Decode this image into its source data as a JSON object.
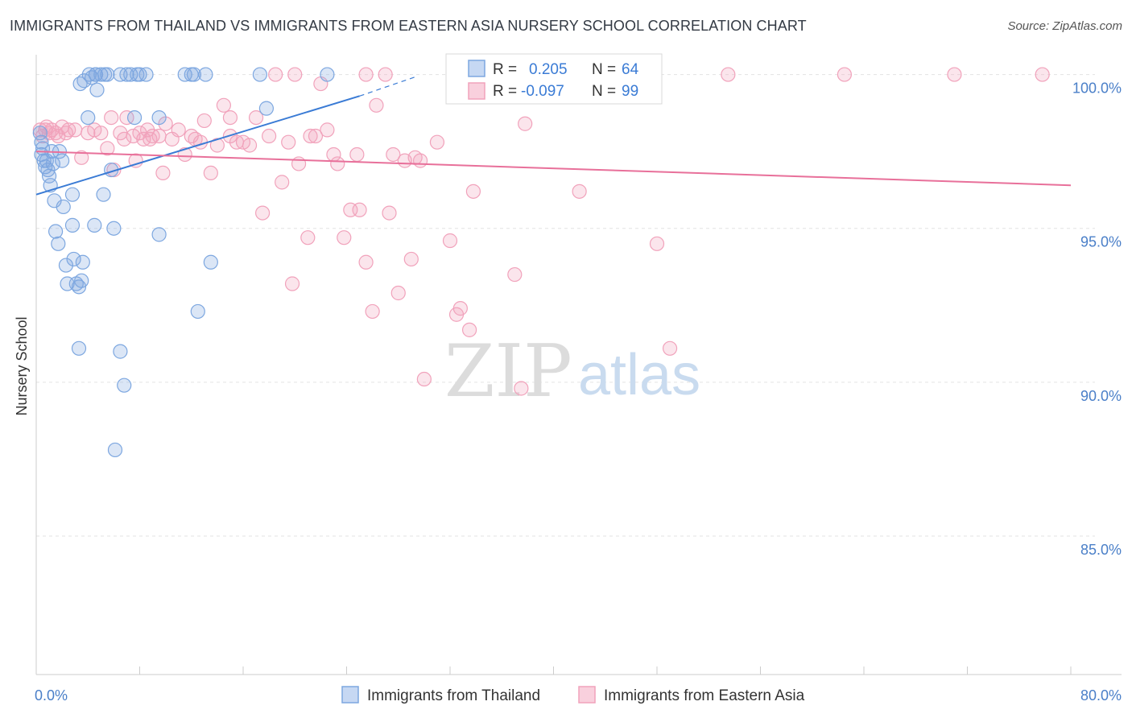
{
  "header": {
    "title": "IMMIGRANTS FROM THAILAND VS IMMIGRANTS FROM EASTERN ASIA NURSERY SCHOOL CORRELATION CHART",
    "source": "Source: ZipAtlas.com"
  },
  "watermark": {
    "zip": "ZIP",
    "atlas": "atlas"
  },
  "chart_data": {
    "type": "scatter",
    "ylabel": "Nursery School",
    "xlim": [
      0,
      80
    ],
    "ylim": [
      80.5,
      100.8
    ],
    "x_tick_labels": [
      {
        "value": 0,
        "label": "0.0%"
      },
      {
        "value": 80,
        "label": "80.0%"
      }
    ],
    "y_tick_labels": [
      {
        "value": 100,
        "label": "100.0%"
      },
      {
        "value": 95,
        "label": "95.0%"
      },
      {
        "value": 90,
        "label": "90.0%"
      },
      {
        "value": 85,
        "label": "85.0%"
      }
    ],
    "grid": true,
    "legend_position": "top-center",
    "legend": [
      {
        "r_label": "R =",
        "r_value": "0.205",
        "n_label": "N =",
        "n_value": "64"
      },
      {
        "r_label": "R =",
        "r_value": "-0.097",
        "n_label": "N =",
        "n_value": "99"
      }
    ],
    "series": [
      {
        "name": "Immigrants from Thailand",
        "color": "#7da7e0",
        "line_color": "#3a7bd5",
        "trend": {
          "x0": 0,
          "y0": 96.1,
          "x1": 25,
          "y1": 99.3,
          "dash_to_x": 29.5,
          "dash_to_y": 99.95
        },
        "points": [
          [
            0.3,
            98.1
          ],
          [
            0.4,
            97.8
          ],
          [
            0.4,
            97.4
          ],
          [
            0.5,
            97.6
          ],
          [
            0.6,
            97.2
          ],
          [
            0.7,
            97.0
          ],
          [
            0.9,
            96.9
          ],
          [
            1.0,
            96.7
          ],
          [
            1.1,
            96.4
          ],
          [
            1.2,
            97.5
          ],
          [
            1.3,
            97.1
          ],
          [
            2.0,
            97.2
          ],
          [
            1.4,
            95.9
          ],
          [
            1.5,
            94.9
          ],
          [
            1.7,
            94.5
          ],
          [
            2.1,
            95.7
          ],
          [
            2.3,
            93.8
          ],
          [
            2.4,
            93.2
          ],
          [
            2.8,
            96.1
          ],
          [
            2.8,
            95.1
          ],
          [
            2.9,
            94.0
          ],
          [
            3.1,
            93.2
          ],
          [
            3.3,
            93.1
          ],
          [
            3.5,
            93.3
          ],
          [
            3.6,
            93.9
          ],
          [
            3.3,
            91.1
          ],
          [
            4.0,
            98.6
          ],
          [
            4.1,
            100.0
          ],
          [
            4.3,
            99.9
          ],
          [
            4.6,
            100.0
          ],
          [
            3.4,
            99.7
          ],
          [
            3.7,
            99.8
          ],
          [
            4.5,
            95.1
          ],
          [
            4.7,
            99.5
          ],
          [
            4.6,
            100.0
          ],
          [
            5.0,
            100.0
          ],
          [
            5.2,
            96.1
          ],
          [
            5.3,
            100.0
          ],
          [
            5.8,
            96.9
          ],
          [
            6.0,
            95.0
          ],
          [
            6.5,
            100.0
          ],
          [
            7.0,
            100.0
          ],
          [
            7.3,
            100.0
          ],
          [
            7.6,
            98.6
          ],
          [
            7.8,
            100.0
          ],
          [
            6.5,
            91.0
          ],
          [
            6.1,
            87.8
          ],
          [
            6.8,
            89.9
          ],
          [
            8.5,
            100.0
          ],
          [
            9.5,
            98.6
          ],
          [
            9.5,
            94.8
          ],
          [
            11.5,
            100.0
          ],
          [
            12.2,
            100.0
          ],
          [
            13.1,
            100.0
          ],
          [
            12.5,
            92.3
          ],
          [
            13.5,
            93.9
          ],
          [
            17.3,
            100.0
          ],
          [
            17.8,
            98.9
          ],
          [
            22.5,
            100.0
          ],
          [
            12.0,
            100.0
          ],
          [
            8.0,
            100.0
          ],
          [
            5.5,
            100.0
          ],
          [
            1.8,
            97.5
          ],
          [
            0.8,
            97.2
          ]
        ]
      },
      {
        "name": "Immigrants from Eastern Asia",
        "color": "#f1a2bb",
        "line_color": "#e8709a",
        "trend": {
          "x0": 0,
          "y0": 97.5,
          "x1": 80,
          "y1": 96.4
        },
        "points": [
          [
            0.3,
            98.2
          ],
          [
            0.5,
            98.0
          ],
          [
            0.8,
            98.3
          ],
          [
            1.0,
            98.1
          ],
          [
            1.2,
            98.2
          ],
          [
            1.5,
            98.1
          ],
          [
            2.0,
            98.3
          ],
          [
            2.5,
            98.2
          ],
          [
            3.0,
            98.2
          ],
          [
            3.5,
            97.3
          ],
          [
            4.0,
            98.1
          ],
          [
            4.5,
            98.2
          ],
          [
            5.0,
            98.1
          ],
          [
            5.5,
            97.6
          ],
          [
            5.8,
            98.6
          ],
          [
            6.0,
            96.9
          ],
          [
            6.5,
            98.1
          ],
          [
            7.0,
            98.6
          ],
          [
            7.5,
            98.0
          ],
          [
            7.7,
            97.2
          ],
          [
            8.0,
            98.1
          ],
          [
            8.3,
            97.9
          ],
          [
            8.6,
            98.2
          ],
          [
            8.8,
            97.9
          ],
          [
            9.0,
            98.0
          ],
          [
            9.5,
            98.0
          ],
          [
            9.8,
            96.8
          ],
          [
            10.0,
            98.4
          ],
          [
            10.5,
            97.9
          ],
          [
            11.0,
            98.2
          ],
          [
            11.5,
            97.4
          ],
          [
            12.0,
            98.0
          ],
          [
            12.3,
            97.9
          ],
          [
            12.7,
            97.8
          ],
          [
            13.0,
            98.5
          ],
          [
            13.5,
            96.8
          ],
          [
            14.0,
            97.7
          ],
          [
            14.5,
            99.0
          ],
          [
            15.0,
            98.6
          ],
          [
            15.5,
            97.8
          ],
          [
            16.0,
            97.8
          ],
          [
            16.5,
            97.7
          ],
          [
            17.0,
            98.6
          ],
          [
            17.5,
            95.5
          ],
          [
            18.0,
            98.0
          ],
          [
            18.5,
            100.0
          ],
          [
            19.0,
            96.5
          ],
          [
            19.5,
            97.8
          ],
          [
            19.8,
            93.2
          ],
          [
            20.0,
            100.0
          ],
          [
            20.3,
            97.1
          ],
          [
            21.0,
            94.7
          ],
          [
            21.2,
            98.0
          ],
          [
            21.6,
            98.0
          ],
          [
            22.0,
            99.7
          ],
          [
            22.5,
            98.2
          ],
          [
            23.0,
            97.4
          ],
          [
            23.3,
            97.1
          ],
          [
            23.8,
            94.7
          ],
          [
            24.3,
            95.6
          ],
          [
            24.8,
            97.4
          ],
          [
            25.0,
            95.6
          ],
          [
            25.5,
            93.9
          ],
          [
            26.0,
            92.3
          ],
          [
            26.3,
            99.0
          ],
          [
            27.0,
            100.0
          ],
          [
            27.3,
            95.5
          ],
          [
            27.6,
            97.4
          ],
          [
            28.0,
            92.9
          ],
          [
            28.5,
            97.2
          ],
          [
            29.0,
            94.0
          ],
          [
            29.3,
            97.3
          ],
          [
            29.7,
            97.2
          ],
          [
            30.0,
            90.1
          ],
          [
            31.0,
            97.8
          ],
          [
            32.0,
            94.6
          ],
          [
            32.5,
            92.2
          ],
          [
            32.8,
            92.4
          ],
          [
            33.5,
            91.7
          ],
          [
            33.8,
            96.2
          ],
          [
            37.0,
            93.5
          ],
          [
            37.5,
            89.8
          ],
          [
            37.8,
            98.4
          ],
          [
            37.5,
            100.0
          ],
          [
            42.0,
            96.2
          ],
          [
            42.5,
            100.0
          ],
          [
            48.0,
            94.5
          ],
          [
            49.0,
            91.1
          ],
          [
            53.5,
            100.0
          ],
          [
            62.5,
            100.0
          ],
          [
            71.0,
            100.0
          ],
          [
            77.8,
            100.0
          ],
          [
            40.0,
            100.0
          ],
          [
            25.5,
            100.0
          ],
          [
            15.0,
            98.0
          ],
          [
            6.8,
            97.9
          ],
          [
            2.3,
            98.1
          ],
          [
            1.7,
            98.0
          ],
          [
            0.7,
            98.2
          ]
        ]
      }
    ]
  }
}
